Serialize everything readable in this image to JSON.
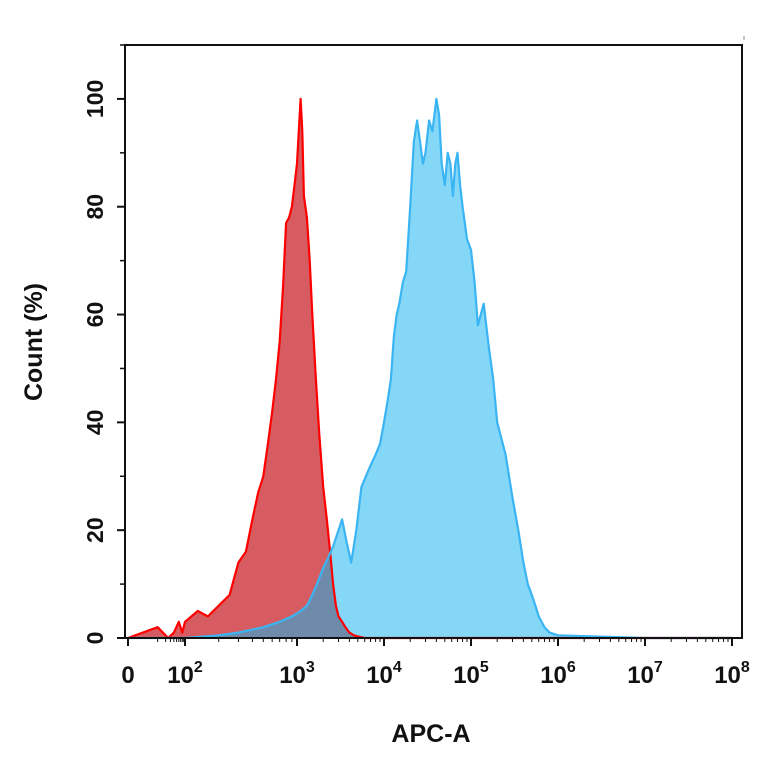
{
  "chart_data": {
    "type": "area",
    "xlabel": "APC-A",
    "ylabel": "Count  (%)",
    "x_scale": "biexponential",
    "xlim": [
      0,
      100000000
    ],
    "ylim": [
      0,
      110
    ],
    "x_ticks": [
      {
        "value": 0,
        "label": "0",
        "exp": ""
      },
      {
        "value": 100,
        "label": "10",
        "exp": "2"
      },
      {
        "value": 1000,
        "label": "10",
        "exp": "3"
      },
      {
        "value": 10000,
        "label": "10",
        "exp": "4"
      },
      {
        "value": 100000,
        "label": "10",
        "exp": "5"
      },
      {
        "value": 1000000,
        "label": "10",
        "exp": "6"
      },
      {
        "value": 10000000,
        "label": "10",
        "exp": "7"
      },
      {
        "value": 100000000,
        "label": "10",
        "exp": "8"
      }
    ],
    "y_ticks": [
      "0",
      "20",
      "40",
      "60",
      "80",
      "100"
    ],
    "grid": false,
    "series": [
      {
        "color": "#ff0000",
        "fill": "#ff6b6b",
        "x": [
          0,
          10,
          25,
          40,
          60,
          80,
          100,
          130,
          160,
          200,
          250,
          300,
          350,
          400,
          450,
          500,
          550,
          600,
          650,
          700,
          750,
          800,
          850,
          900,
          950,
          1000,
          1050,
          1100,
          1150,
          1200,
          1300,
          1400,
          1500,
          1650,
          1800,
          2000,
          2200,
          2400,
          2600,
          2800,
          3000,
          3300,
          3600,
          4000,
          4500,
          5000,
          6000,
          8000,
          10000,
          20000,
          50000,
          100000,
          1000000,
          100000000
        ],
        "y": [
          0,
          2,
          0,
          1,
          3,
          1,
          3,
          5,
          4,
          6,
          8,
          14,
          16,
          22,
          27,
          30,
          36,
          42,
          48,
          55,
          65,
          77,
          78,
          80,
          84,
          88,
          94,
          100,
          94,
          82,
          78,
          70,
          60,
          48,
          38,
          28,
          22,
          16,
          10,
          6,
          4,
          3,
          2,
          1,
          0.5,
          0.3,
          0,
          0,
          0,
          0,
          0,
          0,
          0,
          0
        ]
      },
      {
        "color": "#3ab4f2",
        "fill": "#6ed0f6",
        "x": [
          0,
          100,
          200,
          300,
          500,
          700,
          900,
          1100,
          1300,
          1500,
          1700,
          2000,
          2300,
          2600,
          3000,
          3300,
          3700,
          4200,
          4800,
          5500,
          6200,
          7000,
          8000,
          9000,
          10000,
          11000,
          12000,
          13000,
          14000,
          15000,
          16500,
          18000,
          20000,
          22000,
          24000,
          26000,
          28000,
          30000,
          33000,
          36000,
          40000,
          43000,
          46000,
          50000,
          54000,
          58000,
          62000,
          66000,
          70000,
          75000,
          80000,
          90000,
          100000,
          110000,
          120000,
          140000,
          160000,
          180000,
          200000,
          250000,
          300000,
          350000,
          400000,
          450000,
          500000,
          550000,
          600000,
          700000,
          800000,
          1000000,
          10000000,
          100000000
        ],
        "y": [
          0,
          0,
          0.5,
          1,
          2,
          3,
          4,
          5,
          6,
          8,
          10,
          13,
          15,
          17,
          20,
          22,
          18,
          14,
          20,
          28,
          30,
          32,
          34,
          36,
          40,
          44,
          48,
          56,
          60,
          62,
          66,
          68,
          80,
          92,
          96,
          92,
          88,
          90,
          96,
          94,
          100,
          97,
          88,
          84,
          90,
          88,
          82,
          88,
          90,
          84,
          80,
          74,
          72,
          66,
          58,
          62,
          54,
          48,
          40,
          34,
          26,
          20,
          14,
          10,
          8,
          6,
          4,
          2,
          1,
          0.5,
          0,
          0
        ]
      }
    ]
  }
}
